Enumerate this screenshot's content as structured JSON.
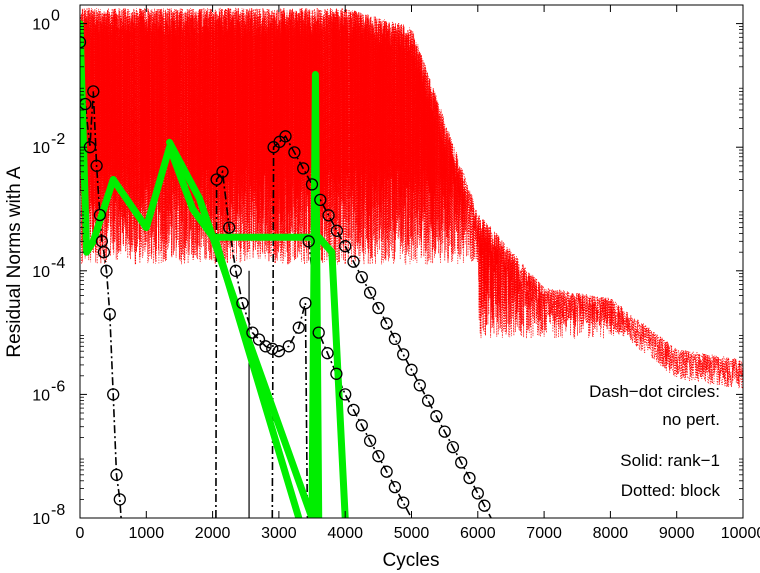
{
  "chart_data": {
    "type": "line",
    "title": "",
    "xlabel": "Cycles",
    "ylabel": "Residual Norms with A",
    "xlim": [
      0,
      10000
    ],
    "ylim": [
      1e-08,
      2
    ],
    "yscale": "log",
    "grid": false,
    "x_ticks": [
      0,
      1000,
      2000,
      3000,
      4000,
      5000,
      6000,
      7000,
      8000,
      9000,
      10000
    ],
    "x_tick_labels": [
      "0",
      "1000",
      "2000",
      "3000",
      "4000",
      "5000",
      "6000",
      "7000",
      "8000",
      "9000",
      "10000"
    ],
    "y_ticks": [
      1e-08,
      1e-06,
      0.0001,
      0.01,
      1
    ],
    "y_tick_labels": [
      {
        "base": "10",
        "exp": "-8"
      },
      {
        "base": "10",
        "exp": "-6"
      },
      {
        "base": "10",
        "exp": "-4"
      },
      {
        "base": "10",
        "exp": "-2"
      },
      {
        "base": "10",
        "exp": "0"
      }
    ],
    "annotations": [
      "Dash−dot circles:",
      "no pert.",
      "Solid: rank−1",
      "Dotted: block"
    ],
    "colors": {
      "red": "#ff0000",
      "green": "#00ee00",
      "black": "#000000"
    },
    "series": [
      {
        "style": "dash-dot circles",
        "color": "#000000",
        "points": [
          [
            0,
            0.5
          ],
          [
            80,
            0.05
          ],
          [
            150,
            0.01
          ],
          [
            200,
            0.08
          ],
          [
            250,
            0.005
          ],
          [
            300,
            0.0008
          ],
          [
            330,
            0.0003
          ],
          [
            360,
            0.0002
          ],
          [
            400,
            0.0001
          ],
          [
            450,
            2e-05
          ],
          [
            500,
            1e-06
          ],
          [
            550,
            5e-08
          ],
          [
            600,
            2e-08
          ],
          [
            620,
            1e-08
          ]
        ]
      },
      {
        "style": "dash-dot circles",
        "color": "#000000",
        "points": [
          [
            2050,
            1e-08
          ],
          [
            2060,
            0.003
          ],
          [
            2150,
            0.004
          ],
          [
            2250,
            0.0005
          ],
          [
            2350,
            0.0001
          ],
          [
            2450,
            3e-05
          ],
          [
            2600,
            1e-05
          ],
          [
            2800,
            6e-06
          ],
          [
            3000,
            5e-06
          ],
          [
            3150,
            6e-06
          ],
          [
            3300,
            1.2e-05
          ],
          [
            3400,
            3e-05
          ],
          [
            3430,
            1e-08
          ]
        ]
      },
      {
        "style": "dash-dot circles",
        "color": "#000000",
        "points": [
          [
            2900,
            1e-08
          ],
          [
            2920,
            0.01
          ],
          [
            3100,
            0.015
          ],
          [
            3500,
            0.0025
          ],
          [
            4000,
            0.00025
          ],
          [
            4500,
            2.5e-05
          ],
          [
            5000,
            2.5e-06
          ],
          [
            5500,
            2.5e-07
          ],
          [
            6000,
            2.5e-08
          ],
          [
            6200,
            1e-08
          ]
        ]
      },
      {
        "style": "dash-dot circles",
        "color": "#000000",
        "points": [
          [
            3450,
            0.0003
          ],
          [
            3600,
            1e-05
          ],
          [
            4000,
            1e-06
          ],
          [
            4500,
            1e-07
          ],
          [
            5000,
            1e-08
          ],
          [
            5150,
            5e-09
          ]
        ]
      },
      {
        "style": "solid",
        "color": "#00ee00",
        "points": [
          [
            0,
            1
          ],
          [
            100,
            0.0002
          ],
          [
            200,
            0.0003
          ],
          [
            500,
            0.003
          ],
          [
            1000,
            0.0005
          ],
          [
            1350,
            0.01
          ],
          [
            1700,
            0.001
          ],
          [
            2050,
            0.0003
          ],
          [
            3300,
            1e-08
          ]
        ]
      },
      {
        "style": "solid",
        "color": "#00ee00",
        "points": [
          [
            1350,
            0.012
          ],
          [
            1800,
            0.0015
          ],
          [
            2500,
            1e-05
          ],
          [
            3500,
            1e-08
          ],
          [
            3550,
            0.15
          ],
          [
            3600,
            1e-08
          ]
        ]
      },
      {
        "style": "solid",
        "color": "#00ee00",
        "points": [
          [
            2050,
            0.00035
          ],
          [
            3600,
            0.00035
          ],
          [
            3800,
            0.0002
          ],
          [
            4000,
            1e-08
          ]
        ]
      },
      {
        "style": "dotted",
        "color": "#ff0000",
        "points": [
          [
            0,
            1
          ],
          [
            1000,
            1
          ],
          [
            2000,
            1
          ],
          [
            3000,
            1
          ],
          [
            4000,
            1
          ],
          [
            5000,
            0.5
          ],
          [
            6000,
            0.0005
          ],
          [
            7000,
            3e-05
          ],
          [
            8000,
            2e-05
          ],
          [
            9000,
            3e-06
          ],
          [
            10000,
            2e-06
          ]
        ]
      }
    ]
  }
}
